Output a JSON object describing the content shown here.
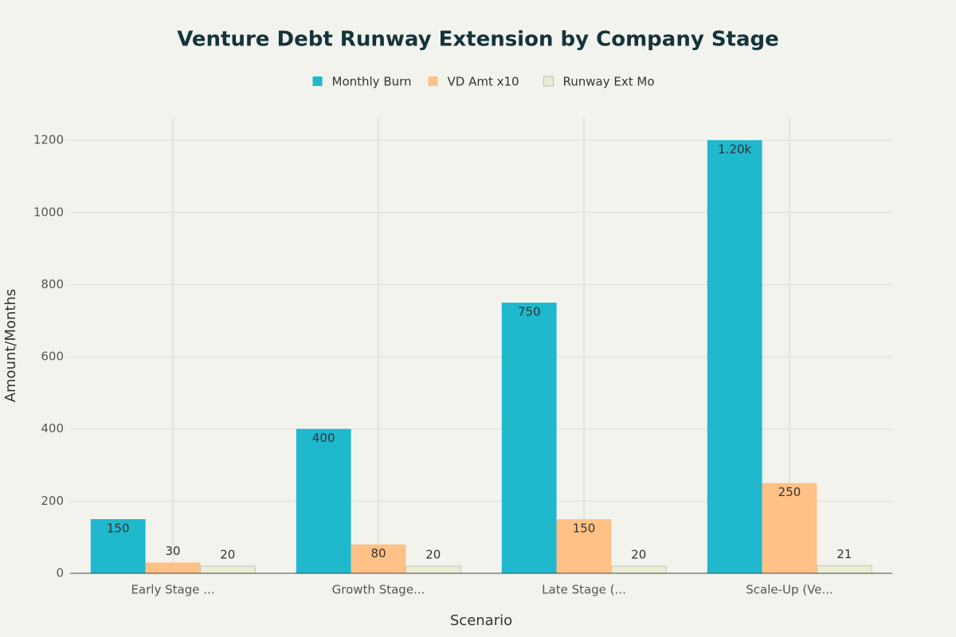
{
  "chart_data": {
    "type": "bar",
    "title": "Venture Debt Runway Extension by Company Stage",
    "x_label": "Scenario",
    "y_label": "Amount/Months",
    "categories": [
      "Early Stage ...",
      "Growth Stage...",
      "Late Stage (...",
      "Scale-Up (Ve..."
    ],
    "series": [
      {
        "name": "Monthly Burn",
        "color": "#1fb8cd",
        "values": [
          150,
          400,
          750,
          1200
        ],
        "value_labels": [
          "150",
          "400",
          "750",
          "1.20k"
        ]
      },
      {
        "name": "VD Amt x10",
        "color": "#ffc185",
        "values": [
          30,
          80,
          150,
          250
        ]
      },
      {
        "name": "Runway Ext Mo",
        "color": "#ecebd5",
        "values": [
          20,
          20,
          20,
          21
        ]
      }
    ],
    "ylim": [
      0,
      1262
    ],
    "yticks": [
      0,
      200,
      400,
      600,
      800,
      1000,
      1200
    ],
    "grid": true,
    "legend": "top"
  }
}
